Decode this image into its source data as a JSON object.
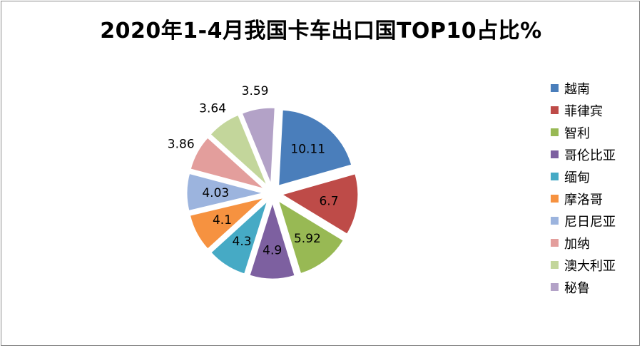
{
  "title": "2020年1-4月我国卡车出口国TOP10占比%",
  "chart_data": {
    "type": "pie",
    "title": "2020年1-4月我国卡车出口国TOP10占比%",
    "legend_position": "right",
    "categories": [
      "越南",
      "菲律宾",
      "智利",
      "哥伦比亚",
      "缅甸",
      "摩洛哥",
      "尼日尼亚",
      "加纳",
      "澳大利亚",
      "秘鲁"
    ],
    "values": [
      10.11,
      6.7,
      5.92,
      4.9,
      4.3,
      4.1,
      4.03,
      3.86,
      3.64,
      3.59
    ],
    "labels": [
      "10.11",
      "6.7",
      "5.92",
      "4.9",
      "4.3",
      "4.1",
      "4.03",
      "3.86",
      "3.64",
      "3.59"
    ],
    "colors": [
      "#4a7ebb",
      "#be4b48",
      "#98b954",
      "#7d60a0",
      "#46aac5",
      "#f69240",
      "#9cb4de",
      "#e39e9c",
      "#c3d69b",
      "#b3a2c7"
    ]
  }
}
